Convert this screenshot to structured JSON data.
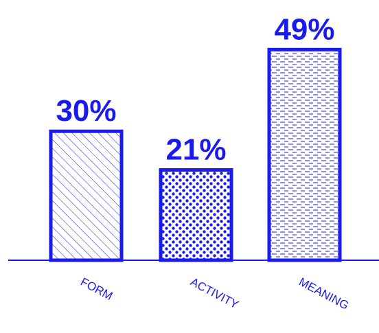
{
  "chart_data": {
    "type": "bar",
    "categories": [
      "FORM",
      "ACTIVITY",
      "MEANING"
    ],
    "values": [
      30,
      21,
      49
    ],
    "value_labels": [
      "30%",
      "21%",
      "49%"
    ],
    "patterns": [
      "diagonal-hatch",
      "dots",
      "dashes"
    ],
    "title": "",
    "xlabel": "",
    "ylabel": "",
    "ylim": [
      0,
      60
    ],
    "grid": false,
    "legend": "none"
  },
  "colors": {
    "primary": "#1a1aee",
    "background": "#ffffff"
  }
}
